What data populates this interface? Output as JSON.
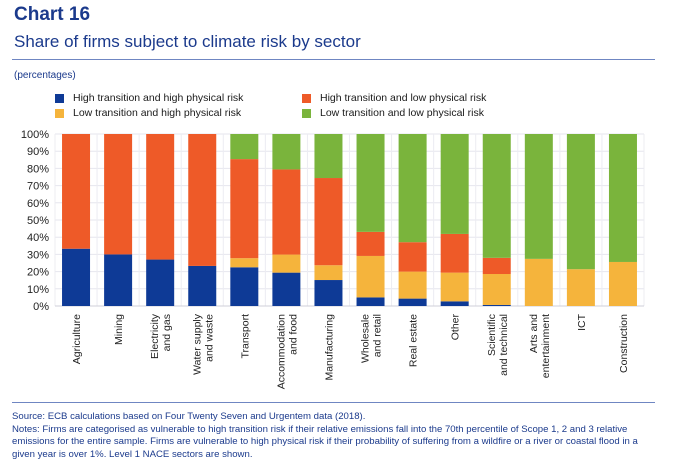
{
  "header": {
    "chart_number": "Chart 16",
    "title": "Share of firms subject to climate risk by sector",
    "units": "(percentages)"
  },
  "footer": {
    "source": "Source: ECB calculations based on Four Twenty Seven and Urgentem data (2018).",
    "notes": "Notes: Firms are categorised as vulnerable to high transition risk if their relative emissions fall into the 70th percentile of Scope 1, 2 and 3 relative emissions for the entire sample. Firms are vulnerable to high physical risk if their probability of suffering from a wildfire or a river or coastal flood in a given year is over 1%. Level 1 NACE sectors are shown."
  },
  "chart_data": {
    "type": "bar",
    "stacked": true,
    "title": "Share of firms subject to climate risk by sector",
    "xlabel": "",
    "ylabel": "(percentages)",
    "ylim": [
      0,
      100
    ],
    "yticks": [
      0,
      10,
      20,
      30,
      40,
      50,
      60,
      70,
      80,
      90,
      100
    ],
    "ytick_labels": [
      "0%",
      "10%",
      "20%",
      "30%",
      "40%",
      "50%",
      "60%",
      "70%",
      "80%",
      "90%",
      "100%"
    ],
    "grid": true,
    "legend_position": "top",
    "categories": [
      [
        "Agriculture"
      ],
      [
        "Mining"
      ],
      [
        "Electricity",
        "and gas"
      ],
      [
        "Water supply",
        "and waste"
      ],
      [
        "Transport"
      ],
      [
        "Accommodation",
        "and food"
      ],
      [
        "Manufacturing"
      ],
      [
        "Wholesale",
        "and retail"
      ],
      [
        "Real estate"
      ],
      [
        "Other"
      ],
      [
        "Scientific",
        "and technical"
      ],
      [
        "Arts and",
        "entertainment"
      ],
      [
        "ICT"
      ],
      [
        "Construction"
      ]
    ],
    "series": [
      {
        "name": "High transition and high physical risk",
        "color": "#0e3a96",
        "values": [
          33.3,
          30.0,
          27.0,
          23.3,
          22.5,
          19.4,
          15.1,
          5.0,
          4.3,
          2.7,
          0.6,
          0.0,
          0.0,
          0.0
        ]
      },
      {
        "name": "Low transition and high physical risk",
        "color": "#f5b43c",
        "values": [
          0.0,
          0.0,
          0.0,
          0.0,
          5.3,
          10.5,
          8.6,
          24.1,
          15.7,
          16.7,
          18.0,
          27.4,
          21.4,
          25.6
        ]
      },
      {
        "name": "High transition and low physical risk",
        "color": "#ee5a28",
        "values": [
          66.7,
          70.0,
          73.0,
          76.7,
          57.6,
          49.5,
          50.7,
          14.0,
          17.1,
          22.5,
          9.4,
          0.0,
          0.0,
          0.0
        ]
      },
      {
        "name": "Low transition and low physical risk",
        "color": "#7ab43c",
        "values": [
          0.0,
          0.0,
          0.0,
          0.0,
          14.6,
          20.6,
          25.6,
          56.9,
          62.9,
          58.1,
          72.0,
          72.6,
          78.6,
          74.4
        ]
      }
    ],
    "legend_order": [
      0,
      2,
      1,
      3
    ]
  }
}
